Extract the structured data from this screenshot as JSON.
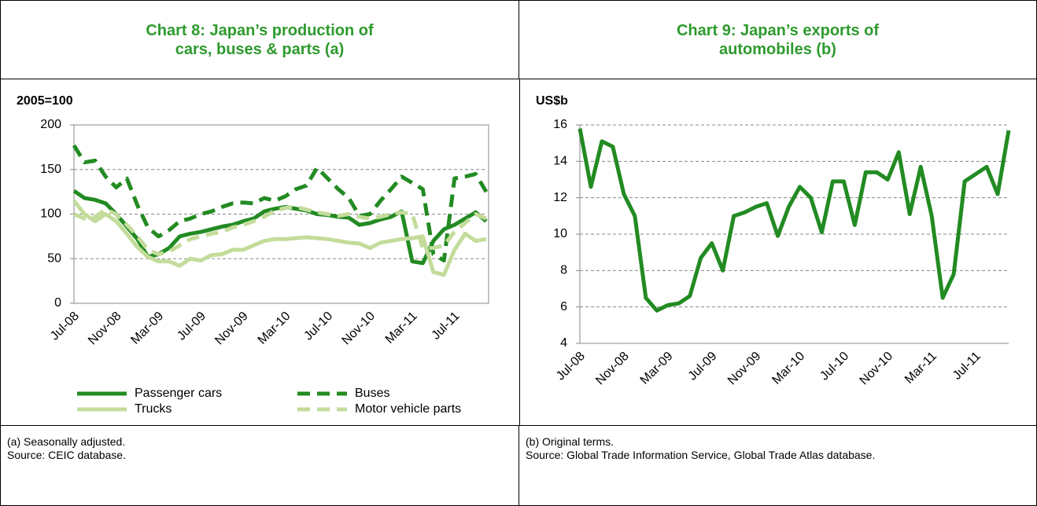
{
  "chart_data": [
    {
      "type": "line",
      "title": "Chart 8: Japan’s production of cars, buses & parts (a)",
      "ylabel": "2005=100",
      "notes": [
        "(a) Seasonally adjusted.",
        "Source: CEIC database."
      ],
      "categories": [
        "Jul-08",
        null,
        null,
        null,
        "Nov-08",
        null,
        null,
        null,
        "Mar-09",
        null,
        null,
        null,
        "Jul-09",
        null,
        null,
        null,
        "Nov-09",
        null,
        null,
        null,
        "Mar-10",
        null,
        null,
        null,
        "Jul-10",
        null,
        null,
        null,
        "Nov-10",
        null,
        null,
        null,
        "Mar-11",
        null,
        null,
        null,
        "Jul-11",
        null,
        null,
        null
      ],
      "ylim": [
        0,
        200
      ],
      "yticks": [
        0,
        50,
        100,
        150,
        200
      ],
      "grid": true,
      "plot_border": true,
      "legend": "bottom",
      "series": [
        {
          "name": "Passenger cars",
          "color": "#228b22",
          "dash": false,
          "values": [
            126,
            118,
            116,
            112,
            100,
            86,
            72,
            52,
            55,
            62,
            75,
            78,
            80,
            83,
            86,
            88,
            92,
            95,
            103,
            106,
            108,
            106,
            104,
            100,
            99,
            97,
            96,
            88,
            90,
            94,
            97,
            103,
            47,
            45,
            70,
            83,
            88,
            95,
            102,
            92
          ]
        },
        {
          "name": "Buses",
          "color": "#228b22",
          "dash": true,
          "values": [
            177,
            158,
            160,
            142,
            130,
            140,
            110,
            85,
            75,
            82,
            92,
            95,
            100,
            103,
            108,
            112,
            113,
            112,
            118,
            115,
            120,
            128,
            132,
            152,
            140,
            128,
            118,
            98,
            100,
            115,
            128,
            142,
            135,
            128,
            55,
            48,
            140,
            142,
            145,
            125
          ]
        },
        {
          "name": "Trucks",
          "color": "#c3dc9b",
          "dash": false,
          "values": [
            115,
            100,
            92,
            100,
            92,
            78,
            63,
            52,
            47,
            47,
            42,
            50,
            48,
            54,
            55,
            60,
            60,
            65,
            70,
            72,
            72,
            73,
            74,
            73,
            72,
            70,
            68,
            67,
            62,
            68,
            70,
            72,
            73,
            75,
            35,
            32,
            60,
            78,
            70,
            72
          ]
        },
        {
          "name": "Motor vehicle parts",
          "color": "#c3dc9b",
          "dash": true,
          "values": [
            100,
            95,
            97,
            105,
            100,
            88,
            75,
            60,
            55,
            58,
            65,
            72,
            75,
            78,
            80,
            85,
            88,
            92,
            97,
            104,
            107,
            108,
            105,
            102,
            100,
            98,
            100,
            97,
            95,
            97,
            100,
            102,
            100,
            62,
            62,
            65,
            80,
            90,
            100,
            95
          ]
        }
      ]
    },
    {
      "type": "line",
      "title": "Chart 9: Japan’s exports of automobiles (b)",
      "ylabel": "US$b",
      "notes": [
        "(b) Original terms.",
        "Source: Global Trade Information Service, Global Trade Atlas database."
      ],
      "categories": [
        "Jul-08",
        null,
        null,
        null,
        "Nov-08",
        null,
        null,
        null,
        "Mar-09",
        null,
        null,
        null,
        "Jul-09",
        null,
        null,
        null,
        "Nov-09",
        null,
        null,
        null,
        "Mar-10",
        null,
        null,
        null,
        "Jul-10",
        null,
        null,
        null,
        "Nov-10",
        null,
        null,
        null,
        "Mar-11",
        null,
        null,
        null,
        "Jul-11",
        null,
        null,
        null
      ],
      "ylim": [
        4,
        16
      ],
      "yticks": [
        4,
        6,
        8,
        10,
        12,
        14,
        16
      ],
      "grid": true,
      "plot_border": false,
      "series": [
        {
          "name": null,
          "color": "#228b22",
          "dash": false,
          "values": [
            15.8,
            12.6,
            15.1,
            14.8,
            12.2,
            11.0,
            6.5,
            5.8,
            6.1,
            6.2,
            6.6,
            8.7,
            9.5,
            8.0,
            11.0,
            11.2,
            11.5,
            11.7,
            9.9,
            11.5,
            12.6,
            12.0,
            10.1,
            12.9,
            12.9,
            10.5,
            13.4,
            13.4,
            13.0,
            14.5,
            11.1,
            13.7,
            11.0,
            6.5,
            7.8,
            12.9,
            13.3,
            13.7,
            12.2,
            15.7
          ]
        }
      ]
    }
  ]
}
